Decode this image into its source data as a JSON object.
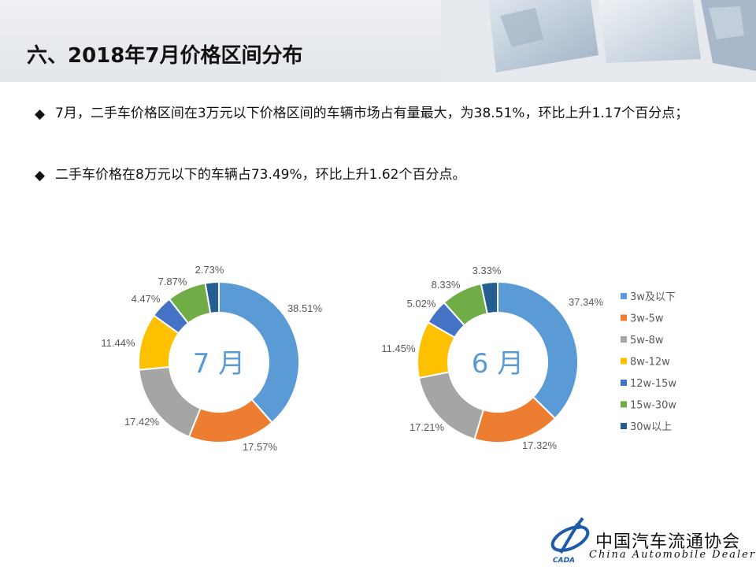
{
  "title": "六、2018年7月价格区间分布",
  "bullets": [
    "7月，二手车价格区间在3万元以下价格区间的车辆市场占有量最大，为38.51%，环比上升1.17个百分点；",
    "二手车价格在8万元以下的车辆占73.49%，环比上升1.62个百分点。"
  ],
  "colors": {
    "series": [
      "#5b9bd5",
      "#ed7d31",
      "#a5a5a5",
      "#ffc000",
      "#4472c4",
      "#70ad47",
      "#255e91"
    ],
    "center_text": "#5b9bd5"
  },
  "chart_data": [
    {
      "type": "pie",
      "title": "7 月",
      "categories": [
        "3w及以下",
        "3w-5w",
        "5w-8w",
        "8w-12w",
        "12w-15w",
        "15w-30w",
        "30w以上"
      ],
      "values": [
        38.51,
        17.57,
        17.42,
        11.44,
        4.47,
        7.87,
        2.73
      ],
      "labels": [
        "38.51%",
        "17.57%",
        "17.42%",
        "11.44%",
        "4.47%",
        "7.87%",
        "2.73%"
      ]
    },
    {
      "type": "pie",
      "title": "6 月",
      "categories": [
        "3w及以下",
        "3w-5w",
        "5w-8w",
        "8w-12w",
        "12w-15w",
        "15w-30w",
        "30w以上"
      ],
      "values": [
        37.34,
        17.32,
        17.21,
        11.45,
        5.02,
        8.33,
        3.33
      ],
      "labels": [
        "37.34%",
        "17.32%",
        "17.21%",
        "11.45%",
        "5.02%",
        "8.33%",
        "3.33%"
      ]
    }
  ],
  "legend": [
    "3w及以下",
    "3w-5w",
    "5w-8w",
    "8w-12w",
    "12w-15w",
    "15w-30w",
    "30w以上"
  ],
  "logo": {
    "name": "中国汽车流通协会",
    "english": "China Automobile Dealers",
    "mark_text": "CADA",
    "icon": "cada-logo-icon"
  }
}
